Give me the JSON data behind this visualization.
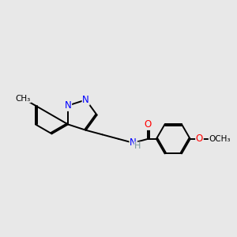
{
  "bg_color": "#e8e8e8",
  "atom_color_N": "#0000ff",
  "atom_color_O": "#ff0000",
  "atom_color_H": "#7a9a9a",
  "line_color": "#000000",
  "line_width": 1.4,
  "dbo": 0.055,
  "fs": 8.5,
  "fig_w": 3.0,
  "fig_h": 3.0,
  "dpi": 100,
  "xlim": [
    0,
    10
  ],
  "ylim": [
    0,
    10
  ]
}
